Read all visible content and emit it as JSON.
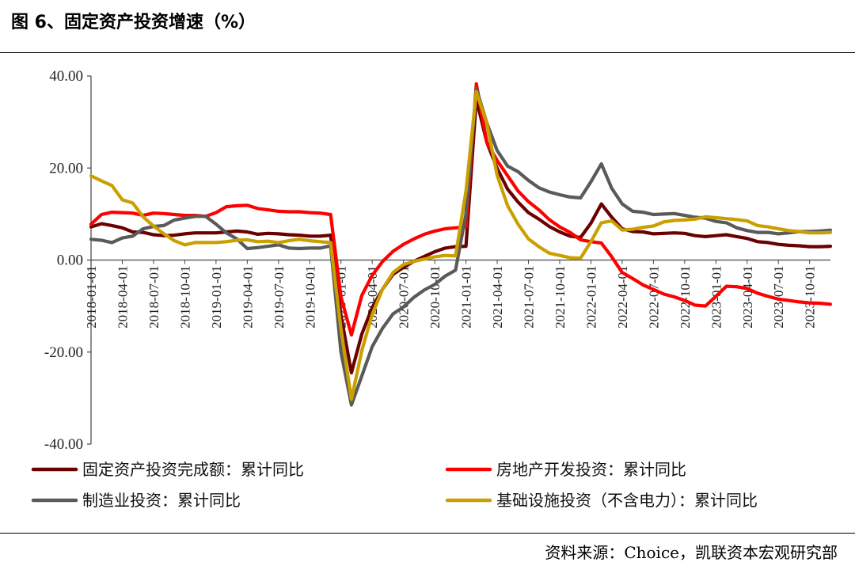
{
  "title": "图 6、固定资产投资增速（%）",
  "source": "资料来源：Choice，凯联资本宏观研究部",
  "chart_data": {
    "type": "line",
    "ylim": [
      -40,
      40
    ],
    "yticks": [
      40,
      20,
      0,
      -20,
      -40
    ],
    "ytick_labels": [
      "40.00",
      "20.00",
      "0.00",
      "-20.00",
      "-40.00"
    ],
    "grid": false,
    "legend_position": "bottom",
    "x": [
      "2018-01",
      "2018-02",
      "2018-03",
      "2018-04",
      "2018-05",
      "2018-06",
      "2018-07",
      "2018-08",
      "2018-09",
      "2018-10",
      "2018-11",
      "2018-12",
      "2019-01",
      "2019-02",
      "2019-03",
      "2019-04",
      "2019-05",
      "2019-06",
      "2019-07",
      "2019-08",
      "2019-09",
      "2019-10",
      "2019-11",
      "2019-12",
      "2020-01",
      "2020-02",
      "2020-03",
      "2020-04",
      "2020-05",
      "2020-06",
      "2020-07",
      "2020-08",
      "2020-09",
      "2020-10",
      "2020-11",
      "2020-12",
      "2021-01",
      "2021-02",
      "2021-03",
      "2021-04",
      "2021-05",
      "2021-06",
      "2021-07",
      "2021-08",
      "2021-09",
      "2021-10",
      "2021-11",
      "2021-12",
      "2022-01",
      "2022-02",
      "2022-03",
      "2022-04",
      "2022-05",
      "2022-06",
      "2022-07",
      "2022-08",
      "2022-09",
      "2022-10",
      "2022-11",
      "2022-12",
      "2023-01",
      "2023-02",
      "2023-03",
      "2023-04",
      "2023-05",
      "2023-06",
      "2023-07",
      "2023-08",
      "2023-09",
      "2023-10",
      "2023-11",
      "2023-12"
    ],
    "xtick_labels": [
      "2018-01-01",
      "2018-04-01",
      "2018-07-01",
      "2018-10-01",
      "2019-01-01",
      "2019-04-01",
      "2019-07-01",
      "2019-10-01",
      "2020-01-01",
      "2020-04-01",
      "2020-07-01",
      "2020-10-01",
      "2021-01-01",
      "2021-04-01",
      "2021-07-01",
      "2021-10-01",
      "2022-01-01",
      "2022-04-01",
      "2022-07-01",
      "2022-10-01",
      "2023-01-01",
      "2023-04-01",
      "2023-07-01",
      "2023-10-01"
    ],
    "series": [
      {
        "name": "固定资产投资完成额：累计同比",
        "color": "#6b0000",
        "values": [
          7.2,
          7.9,
          7.5,
          7.0,
          6.1,
          6.0,
          5.5,
          5.3,
          5.4,
          5.7,
          5.9,
          5.9,
          5.9,
          6.1,
          6.3,
          6.1,
          5.6,
          5.8,
          5.7,
          5.5,
          5.4,
          5.2,
          5.2,
          5.4,
          -12.0,
          -24.5,
          -16.1,
          -10.3,
          -6.3,
          -3.1,
          -1.6,
          -0.3,
          0.8,
          1.8,
          2.6,
          2.9,
          3.0,
          35.0,
          25.6,
          19.9,
          15.4,
          12.6,
          10.3,
          8.9,
          7.3,
          6.1,
          5.2,
          4.9,
          8.0,
          12.2,
          9.3,
          6.8,
          6.2,
          6.1,
          5.7,
          5.8,
          5.9,
          5.8,
          5.3,
          5.1,
          5.3,
          5.5,
          5.1,
          4.7,
          4.0,
          3.8,
          3.4,
          3.2,
          3.1,
          2.9,
          2.9,
          3.0
        ]
      },
      {
        "name": "房地产开发投资：累计同比",
        "color": "#ff0000",
        "values": [
          7.8,
          9.9,
          10.4,
          10.3,
          10.2,
          9.7,
          10.2,
          10.1,
          9.9,
          9.7,
          9.7,
          9.5,
          10.3,
          11.6,
          11.8,
          11.9,
          11.2,
          10.9,
          10.6,
          10.5,
          10.5,
          10.3,
          10.2,
          9.9,
          -8.0,
          -16.3,
          -7.7,
          -3.3,
          -0.3,
          1.9,
          3.4,
          4.6,
          5.6,
          6.3,
          6.8,
          7.0,
          7.2,
          38.3,
          25.6,
          21.6,
          18.3,
          15.0,
          12.7,
          10.9,
          8.8,
          7.2,
          6.0,
          4.4,
          4.0,
          3.7,
          0.7,
          -2.7,
          -4.0,
          -5.4,
          -6.4,
          -7.4,
          -8.0,
          -8.8,
          -9.8,
          -10.0,
          -7.9,
          -5.7,
          -5.8,
          -6.2,
          -7.2,
          -7.9,
          -8.5,
          -8.8,
          -9.1,
          -9.3,
          -9.4,
          -9.6
        ]
      },
      {
        "name": "制造业投资：累计同比",
        "color": "#5a5a5a",
        "values": [
          4.5,
          4.3,
          3.8,
          4.8,
          5.2,
          6.8,
          7.3,
          7.5,
          8.7,
          9.1,
          9.5,
          9.5,
          7.8,
          5.9,
          4.6,
          2.5,
          2.7,
          3.0,
          3.3,
          2.6,
          2.5,
          2.6,
          2.6,
          3.1,
          -20.0,
          -31.5,
          -25.2,
          -18.8,
          -14.8,
          -11.7,
          -10.2,
          -8.1,
          -6.5,
          -5.3,
          -3.5,
          -2.2,
          10.0,
          37.3,
          29.8,
          23.8,
          20.4,
          19.2,
          17.3,
          15.7,
          14.8,
          14.2,
          13.7,
          13.5,
          17.0,
          20.9,
          15.6,
          12.2,
          10.6,
          10.4,
          9.9,
          10.0,
          10.1,
          9.7,
          9.3,
          9.1,
          8.4,
          8.1,
          7.0,
          6.4,
          6.0,
          6.0,
          5.7,
          5.9,
          6.2,
          6.2,
          6.3,
          6.5
        ]
      },
      {
        "name": "基础设施投资（不含电力）：累计同比",
        "color": "#c9a000",
        "values": [
          18.3,
          17.2,
          16.2,
          13.1,
          12.4,
          9.4,
          7.4,
          5.7,
          4.2,
          3.3,
          3.8,
          3.8,
          3.8,
          4.0,
          4.3,
          4.4,
          4.0,
          4.1,
          3.8,
          4.2,
          4.5,
          4.2,
          4.0,
          3.8,
          -15.0,
          -30.3,
          -19.7,
          -11.8,
          -6.3,
          -2.7,
          -1.0,
          -0.3,
          0.2,
          0.7,
          1.0,
          0.9,
          15.0,
          36.6,
          29.7,
          18.4,
          11.8,
          7.8,
          4.6,
          2.9,
          1.5,
          1.0,
          0.5,
          0.4,
          4.0,
          8.1,
          8.5,
          6.5,
          6.7,
          7.1,
          7.4,
          8.3,
          8.6,
          8.7,
          8.9,
          9.4,
          9.2,
          9.0,
          8.8,
          8.5,
          7.5,
          7.2,
          6.8,
          6.4,
          6.2,
          5.9,
          5.9,
          6.0
        ]
      }
    ]
  }
}
